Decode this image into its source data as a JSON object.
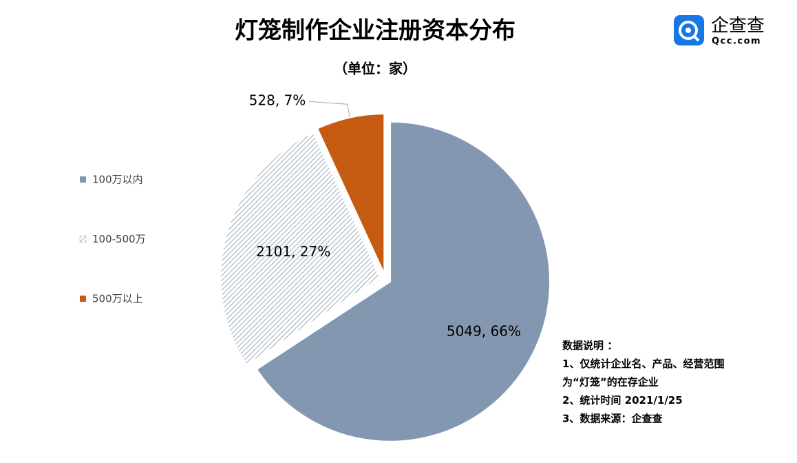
{
  "chart_data": {
    "type": "pie",
    "title": "灯笼制作企业注册资本分布",
    "subtitle": "（单位：家）",
    "categories": [
      "100万以内",
      "100-500万",
      "500万以上"
    ],
    "values": [
      5049,
      2101,
      528
    ],
    "value_labels": [
      "5049, 66%",
      "2101, 27%",
      "528, 7%"
    ],
    "colors": [
      "#8497b0",
      "#a9b6c3",
      "#c55a11"
    ],
    "hatched": [
      false,
      true,
      false
    ],
    "legend": "left",
    "notes": [
      "数据说明 ：",
      "1、仅统计企业名、产品、经营范围",
      "为“灯笼”的在存企业",
      "2、统计时间 2021/1/25",
      "3、数据来源：企查查"
    ],
    "logo": {
      "text": "企查查",
      "subtext": "Qcc.com"
    }
  }
}
